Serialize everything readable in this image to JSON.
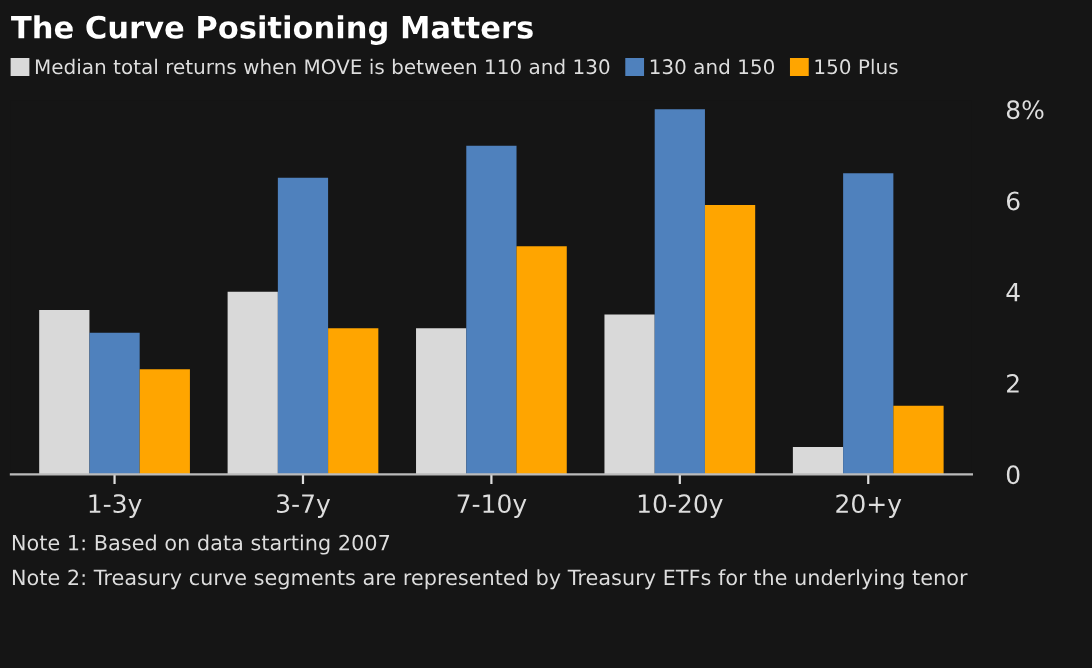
{
  "chart_data": {
    "type": "bar",
    "title": "The Curve Positioning Matters",
    "categories": [
      "1-3y",
      "3-7y",
      "7-10y",
      "10-20y",
      "20+y"
    ],
    "series": [
      {
        "name": "Median total returns when MOVE is between 110 and 130",
        "color": "#d9d9d9",
        "values": [
          3.6,
          4.0,
          3.2,
          3.5,
          0.6
        ]
      },
      {
        "name": "130 and 150",
        "color": "#4f81bd",
        "values": [
          3.1,
          6.5,
          7.2,
          8.0,
          6.6
        ]
      },
      {
        "name": "150 Plus",
        "color": "#ffa500",
        "values": [
          2.3,
          3.2,
          5.0,
          5.9,
          1.5
        ]
      }
    ],
    "ylim": [
      0,
      8.2
    ],
    "yticks": [
      0,
      2,
      4,
      6,
      {
        "value": 8,
        "label": "8%"
      }
    ],
    "grid": false,
    "legend": "top",
    "annotations": [
      "Note 1: Based on data starting 2007",
      "Note 2: Treasury curve segments are represented by Treasury ETFs for the underlying tenor"
    ]
  }
}
